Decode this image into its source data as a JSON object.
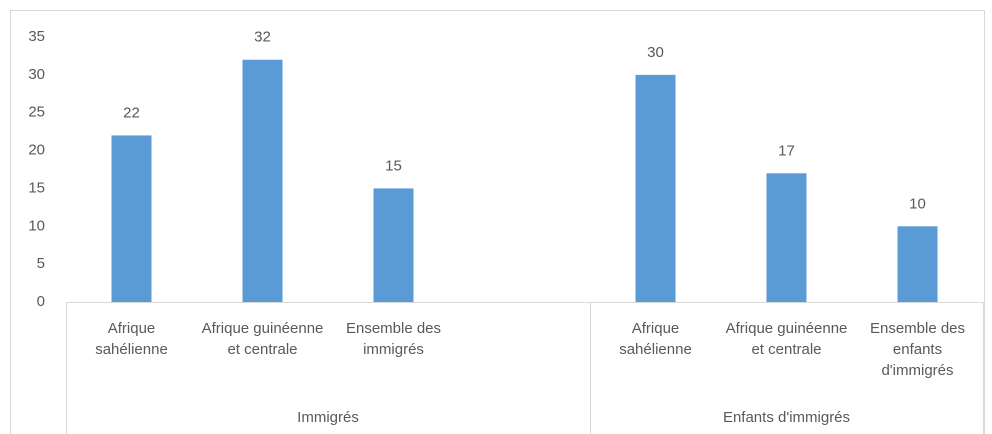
{
  "chart_data": {
    "type": "bar",
    "categories": [
      "Afrique sahélienne",
      "Afrique guinéenne et centrale",
      "Ensemble des immigrés",
      null,
      "Afrique sahélienne",
      "Afrique guinéenne et centrale",
      "Ensemble des enfants d'immigrés"
    ],
    "category_groups": [
      "Immigrés",
      "Immigrés",
      "Immigrés",
      "Immigrés",
      "Enfants d'immigrés",
      "Enfants d'immigrés",
      "Enfants d'immigrés"
    ],
    "values": [
      22,
      32,
      15,
      null,
      30,
      17,
      10
    ],
    "color": "#5b9bd5",
    "ylim": [
      0,
      35
    ],
    "yticks": [
      0,
      5,
      10,
      15,
      20,
      25,
      30,
      35
    ],
    "grid": false
  }
}
